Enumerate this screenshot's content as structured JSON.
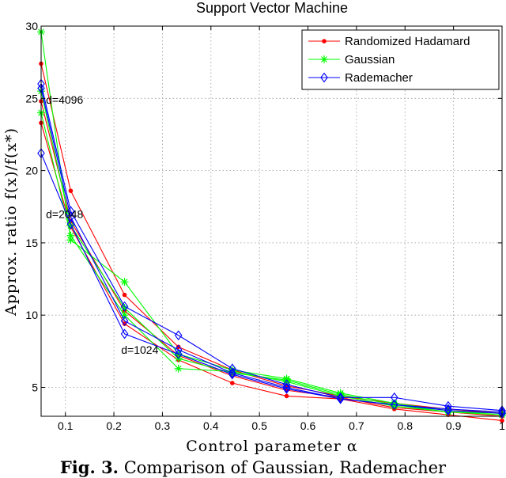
{
  "chart_data": {
    "type": "line",
    "title": "Support Vector Machine",
    "xlabel": "Control parameter α",
    "ylabel": "Approx. ratio f(x)/f(x*)",
    "xlim": [
      0.05,
      1.0
    ],
    "ylim": [
      3,
      30
    ],
    "xticks": [
      0.1,
      0.2,
      0.3,
      0.4,
      0.5,
      0.6,
      0.7,
      0.8,
      0.9,
      1
    ],
    "xtick_labels": [
      "0.1",
      "0.2",
      "0.3",
      "0.4",
      "0.5",
      "0.6",
      "0.7",
      "0.8",
      "0.9",
      "1"
    ],
    "yticks": [
      5,
      10,
      15,
      20,
      25,
      30
    ],
    "ytick_labels": [
      "5",
      "10",
      "15",
      "20",
      "25",
      "30"
    ],
    "grid": true,
    "legend_position": "top-right",
    "legend": [
      {
        "name": "Randomized Hadamard",
        "color": "#ff0000",
        "marker": "dot"
      },
      {
        "name": "Gaussian",
        "color": "#00ff00",
        "marker": "star"
      },
      {
        "name": "Rademacher",
        "color": "#0000ff",
        "marker": "diamond"
      }
    ],
    "x": [
      0.05,
      0.111,
      0.222,
      0.333,
      0.444,
      0.556,
      0.667,
      0.778,
      0.889,
      1.0
    ],
    "series": [
      {
        "name": "Randomized Hadamard",
        "group": "d=4096",
        "color": "#ff0000",
        "marker": "dot",
        "values": [
          27.4,
          18.6,
          11.4,
          7.8,
          6.2,
          5.1,
          4.4,
          3.9,
          3.5,
          3.2
        ]
      },
      {
        "name": "Randomized Hadamard",
        "group": "d=2048",
        "color": "#ff0000",
        "marker": "dot",
        "values": [
          24.8,
          16.5,
          10.3,
          7.2,
          5.8,
          4.8,
          4.3,
          3.6,
          3.3,
          3.0
        ]
      },
      {
        "name": "Randomized Hadamard",
        "group": "d=1024",
        "color": "#ff0000",
        "marker": "dot",
        "values": [
          23.3,
          16.1,
          9.4,
          6.9,
          5.3,
          4.4,
          4.2,
          3.5,
          3.1,
          2.7
        ]
      },
      {
        "name": "Gaussian",
        "group": "d=4096",
        "color": "#00ff00",
        "marker": "star",
        "values": [
          29.6,
          15.2,
          12.3,
          7.3,
          6.2,
          5.6,
          4.6,
          3.9,
          3.4,
          3.2
        ]
      },
      {
        "name": "Gaussian",
        "group": "d=2048",
        "color": "#00ff00",
        "marker": "star",
        "values": [
          25.5,
          16.2,
          10.5,
          7.0,
          6.0,
          5.5,
          4.5,
          3.8,
          3.3,
          3.1
        ]
      },
      {
        "name": "Gaussian",
        "group": "d=1024",
        "color": "#00ff00",
        "marker": "star",
        "values": [
          24.0,
          15.5,
          10.0,
          6.3,
          6.1,
          5.4,
          4.4,
          3.7,
          3.3,
          3.2
        ]
      },
      {
        "name": "Rademacher",
        "group": "d=4096",
        "color": "#0000ff",
        "marker": "diamond",
        "values": [
          26.0,
          17.2,
          10.6,
          8.6,
          6.3,
          5.2,
          4.3,
          4.3,
          3.7,
          3.4
        ]
      },
      {
        "name": "Rademacher",
        "group": "d=2048",
        "color": "#0000ff",
        "marker": "diamond",
        "values": [
          25.7,
          16.8,
          9.6,
          7.6,
          6.0,
          5.0,
          4.2,
          3.8,
          3.5,
          3.3
        ]
      },
      {
        "name": "Rademacher",
        "group": "d=1024",
        "color": "#0000ff",
        "marker": "diamond",
        "values": [
          21.2,
          16.3,
          8.7,
          7.3,
          5.9,
          4.9,
          4.2,
          3.8,
          3.4,
          3.2
        ]
      }
    ],
    "annotations": [
      {
        "text": "d=4096",
        "x": 0.06,
        "y": 24.9
      },
      {
        "text": "d=2048",
        "x": 0.06,
        "y": 17.0
      },
      {
        "text": "d=1024",
        "x": 0.215,
        "y": 7.6
      }
    ]
  },
  "caption": {
    "label": "Fig. 3.",
    "text": "Comparison of Gaussian, Rademacher"
  }
}
